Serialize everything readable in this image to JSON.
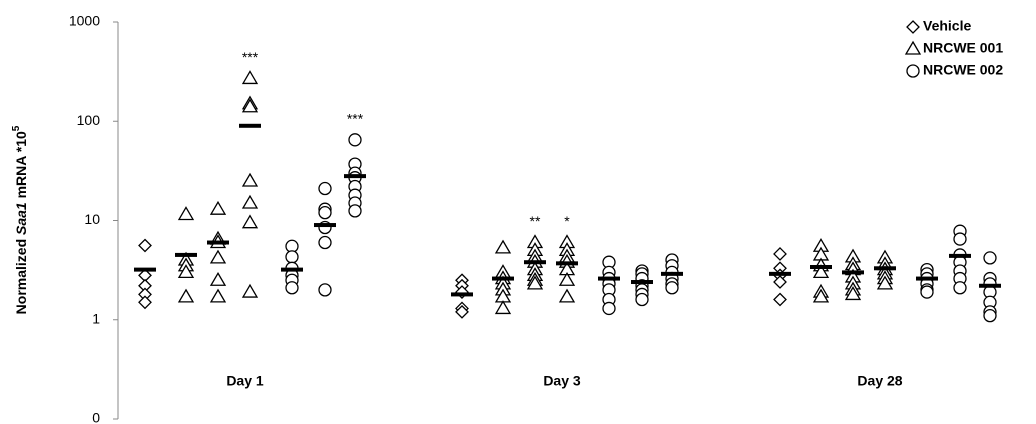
{
  "chart_data": {
    "type": "scatter",
    "y_label": {
      "prefix": "Normalized",
      "gene": "Saa1",
      "suffix": "mRNA  *10",
      "exponent": "5"
    },
    "log_y": true,
    "ylim": [
      0.1,
      1000
    ],
    "yticks": [
      {
        "value": 0.1,
        "label": "0"
      },
      1,
      10,
      100,
      1000
    ],
    "categories": [
      "Day 1",
      "Day 3",
      "Day 28"
    ],
    "legend_position": "top-right",
    "series": [
      {
        "name": "Vehicle",
        "marker": "diamond",
        "color": "#000000",
        "days": [
          [
            {
              "values": [
                5.6,
                2.8,
                2.2,
                1.8,
                1.5
              ],
              "mean": 3.2
            }
          ],
          [
            {
              "values": [
                2.5,
                2.2,
                1.9,
                1.3,
                1.2
              ],
              "mean": 1.8
            }
          ],
          [
            {
              "values": [
                4.6,
                3.3,
                2.8,
                2.4,
                1.6
              ],
              "mean": 2.9
            }
          ]
        ]
      },
      {
        "name": "NRCWE 001",
        "marker": "triangle",
        "color": "#000000",
        "days": [
          [
            {
              "values": [
                11.5,
                4,
                3.5,
                3,
                1.7
              ],
              "mean": 4.5
            },
            {
              "values": [
                13,
                6.5,
                6,
                4.2,
                2.5,
                1.7
              ],
              "mean": 6
            },
            {
              "values": [
                270,
                150,
                140,
                25,
                15,
                9.5,
                1.9
              ],
              "mean": 90,
              "annotation": "***"
            }
          ],
          [
            {
              "values": [
                5.3,
                3,
                2.6,
                2.3,
                2,
                1.7,
                1.3
              ],
              "mean": 2.6
            },
            {
              "values": [
                6,
                5,
                4.3,
                3.8,
                3.2,
                2.8,
                2.5,
                2.3
              ],
              "mean": 3.8,
              "annotation": "**"
            },
            {
              "values": [
                6,
                5,
                4.3,
                3.8,
                3.2,
                2.5,
                1.7
              ],
              "mean": 3.7,
              "annotation": "*"
            }
          ],
          [
            {
              "values": [
                5.5,
                4.5,
                3.5,
                3,
                1.9,
                1.7
              ],
              "mean": 3.4
            },
            {
              "values": [
                4.3,
                3.6,
                3.2,
                2.7,
                2.3,
                2,
                1.8
              ],
              "mean": 3
            },
            {
              "values": [
                4.2,
                3.6,
                3.2,
                2.9,
                2.6,
                2.3
              ],
              "mean": 3.3
            }
          ]
        ]
      },
      {
        "name": "NRCWE 002",
        "marker": "circle",
        "color": "#000000",
        "days": [
          [
            {
              "values": [
                5.5,
                4.3,
                3.3,
                2.8,
                2.5,
                2.1
              ],
              "mean": 3.2
            },
            {
              "values": [
                21,
                13,
                12,
                8.5,
                6,
                2
              ],
              "mean": 9
            },
            {
              "values": [
                65,
                37,
                30,
                27,
                22,
                18,
                15,
                12.5
              ],
              "mean": 28,
              "annotation": "***"
            }
          ],
          [
            {
              "values": [
                3.8,
                3,
                2.6,
                2.3,
                2,
                1.6,
                1.3
              ],
              "mean": 2.6
            },
            {
              "values": [
                3.1,
                2.9,
                2.6,
                2.2,
                2,
                1.8,
                1.6
              ],
              "mean": 2.4
            },
            {
              "values": [
                4,
                3.5,
                3,
                2.6,
                2.3,
                2.1
              ],
              "mean": 2.9
            }
          ],
          [
            {
              "values": [
                3.2,
                2.9,
                2.6,
                2.3,
                2,
                1.9
              ],
              "mean": 2.6
            },
            {
              "values": [
                7.8,
                6.5,
                4.5,
                3.8,
                3.1,
                2.6,
                2.1
              ],
              "mean": 4.4
            },
            {
              "values": [
                4.2,
                2.6,
                2.3,
                1.9,
                1.5,
                1.2,
                1.1
              ],
              "mean": 2.2
            }
          ]
        ]
      }
    ]
  }
}
